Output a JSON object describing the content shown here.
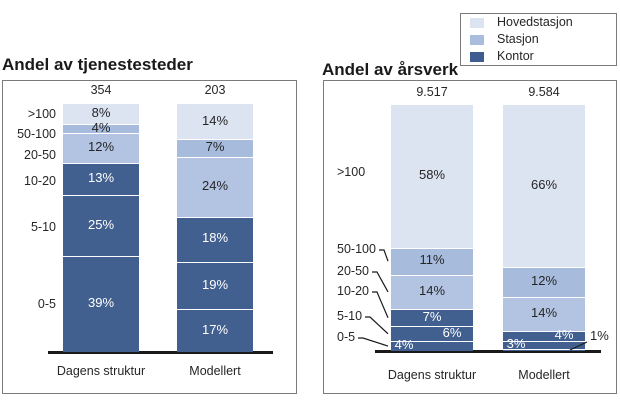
{
  "colors": {
    "background": "#ffffff",
    "panel_border": "#7a7a7a",
    "axis": "#1a1a1a",
    "label_dark": "#262626",
    "label_light": "#ffffff",
    "segment_separator": "#ffffff"
  },
  "legend": {
    "items": [
      {
        "label": "Hovedstasjon",
        "color": "#dce3f1"
      },
      {
        "label": "Stasjon",
        "color": "#a9bdde"
      },
      {
        "label": "Kontor",
        "color": "#3f5c90"
      }
    ]
  },
  "chart_data": [
    {
      "type": "bar",
      "stacked": true,
      "units": "percent",
      "title": "Andel av tjenestesteder",
      "categories": [
        "Dagens struktur",
        "Modellert"
      ],
      "bar_totals": [
        "354",
        "203"
      ],
      "size_class_labels": [
        ">100",
        "50-100",
        "20-50",
        "10-20",
        "5-10",
        "0-5"
      ],
      "ylim": [
        0,
        100
      ],
      "grid": false,
      "legend_position": "top-right-shared",
      "series": [
        {
          "name": ">100",
          "legend_group": "Hovedstasjon",
          "color": "#dce3f1",
          "label_color": "#262626",
          "values_pct": [
            8,
            14
          ],
          "labels": [
            "8%",
            "14%"
          ],
          "label_pos": [
            "center",
            "center"
          ]
        },
        {
          "name": "50-100",
          "legend_group": "Stasjon",
          "color": "#a7bbdc",
          "label_color": "#262626",
          "values_pct": [
            4,
            7
          ],
          "labels": [
            "4%",
            "7%"
          ],
          "label_pos": [
            "center",
            "center"
          ]
        },
        {
          "name": "20-50",
          "legend_group": "Stasjon",
          "color": "#b3c4e2",
          "label_color": "#262626",
          "values_pct": [
            12,
            24
          ],
          "labels": [
            "12%",
            "24%"
          ],
          "label_pos": [
            "center",
            "center"
          ]
        },
        {
          "name": "10-20",
          "legend_group": "Kontor",
          "color": "#42608f",
          "label_color": "#ffffff",
          "values_pct": [
            13,
            18
          ],
          "labels": [
            "13%",
            "18%"
          ],
          "label_pos": [
            "center",
            "center"
          ]
        },
        {
          "name": "5-10",
          "legend_group": "Kontor",
          "color": "#42608f",
          "label_color": "#ffffff",
          "values_pct": [
            25,
            19
          ],
          "labels": [
            "25%",
            "19%"
          ],
          "label_pos": [
            "center",
            "center"
          ]
        },
        {
          "name": "0-5",
          "legend_group": "Kontor",
          "color": "#42608f",
          "label_color": "#ffffff",
          "values_pct": [
            39,
            17
          ],
          "labels": [
            "39%",
            "17%"
          ],
          "label_pos": [
            "center",
            "center"
          ]
        }
      ]
    },
    {
      "type": "bar",
      "stacked": true,
      "units": "percent",
      "title": "Andel av årsverk",
      "categories": [
        "Dagens struktur",
        "Modellert"
      ],
      "bar_totals": [
        "9.517",
        "9.584"
      ],
      "size_class_labels": [
        ">100",
        "50-100",
        "20-50",
        "10-20",
        "5-10",
        "0-5"
      ],
      "ylim": [
        0,
        100
      ],
      "grid": false,
      "legend_position": "top-right-shared",
      "series": [
        {
          "name": ">100",
          "legend_group": "Hovedstasjon",
          "color": "#dce3f1",
          "label_color": "#262626",
          "values_pct": [
            58,
            66
          ],
          "labels": [
            "58%",
            "66%"
          ],
          "label_pos": [
            "center",
            "center"
          ]
        },
        {
          "name": "50-100",
          "legend_group": "Stasjon",
          "color": "#a7bbdc",
          "label_color": "#262626",
          "values_pct": [
            11,
            12
          ],
          "labels": [
            "11%",
            "12%"
          ],
          "label_pos": [
            "center",
            "center"
          ]
        },
        {
          "name": "20-50",
          "legend_group": "Stasjon",
          "color": "#b3c4e2",
          "label_color": "#262626",
          "values_pct": [
            14,
            14
          ],
          "labels": [
            "14%",
            "14%"
          ],
          "label_pos": [
            "center",
            "center"
          ]
        },
        {
          "name": "10-20",
          "legend_group": "Kontor",
          "color": "#42608f",
          "label_color": "#ffffff",
          "values_pct": [
            7,
            4
          ],
          "labels": [
            "7%",
            "4%"
          ],
          "label_pos": [
            "center",
            "right"
          ]
        },
        {
          "name": "5-10",
          "legend_group": "Kontor",
          "color": "#42608f",
          "label_color": "#ffffff",
          "values_pct": [
            6,
            3
          ],
          "labels": [
            "6%",
            "3%"
          ],
          "label_pos": [
            "right",
            "left"
          ]
        },
        {
          "name": "0-5",
          "legend_group": "Kontor",
          "color": "#42608f",
          "label_color": "#ffffff",
          "values_pct": [
            4,
            1
          ],
          "labels": [
            "4%",
            "1%"
          ],
          "label_pos": [
            "left",
            "outside"
          ]
        }
      ]
    }
  ]
}
